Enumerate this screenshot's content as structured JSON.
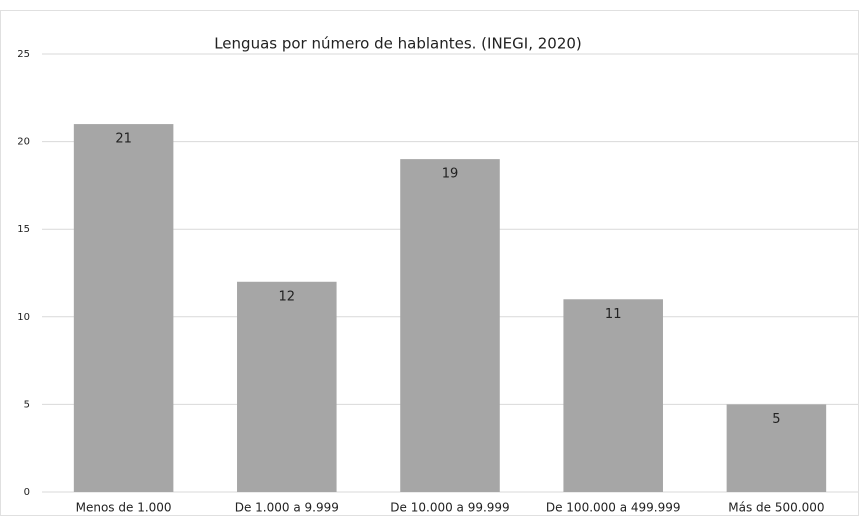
{
  "chart_data": {
    "type": "bar",
    "title": "Lenguas por número de hablantes. (INEGI, 2020)",
    "categories": [
      "Menos de 1.000",
      "De 1.000 a 9.999",
      "De 10.000 a 99.999",
      "De 100.000 a 499.999",
      "Más de 500.000"
    ],
    "values": [
      21,
      12,
      19,
      11,
      5
    ],
    "color": "#a6a6a6",
    "ylim": [
      0,
      25
    ],
    "yticks": [
      0,
      5,
      10,
      15,
      20,
      25
    ],
    "grid": true
  }
}
